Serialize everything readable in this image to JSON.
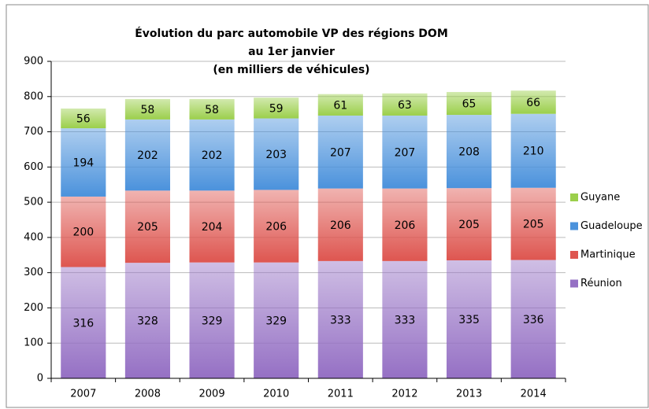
{
  "chart_data": {
    "type": "stacked_bar",
    "title": [
      "Évolution du parc automobile VP des régions DOM",
      "au 1er janvier",
      "(en milliers de véhicules)"
    ],
    "categories": [
      "2007",
      "2008",
      "2009",
      "2010",
      "2011",
      "2012",
      "2013",
      "2014"
    ],
    "series": [
      {
        "name": "Réunion",
        "color": "#9570c4",
        "values": [
          316,
          328,
          329,
          329,
          333,
          333,
          335,
          336
        ]
      },
      {
        "name": "Martinique",
        "color": "#de5650",
        "values": [
          200,
          205,
          204,
          206,
          206,
          206,
          205,
          205
        ]
      },
      {
        "name": "Guadeloupe",
        "color": "#4b92dc",
        "values": [
          194,
          202,
          202,
          203,
          207,
          207,
          208,
          210
        ]
      },
      {
        "name": "Guyane",
        "color": "#9bcf4b",
        "values": [
          56,
          58,
          58,
          59,
          61,
          63,
          65,
          66
        ]
      }
    ],
    "ylim": [
      0,
      900
    ],
    "yticks": [
      0,
      100,
      200,
      300,
      400,
      500,
      600,
      700,
      800,
      900
    ],
    "grid": true,
    "legend": "right"
  }
}
